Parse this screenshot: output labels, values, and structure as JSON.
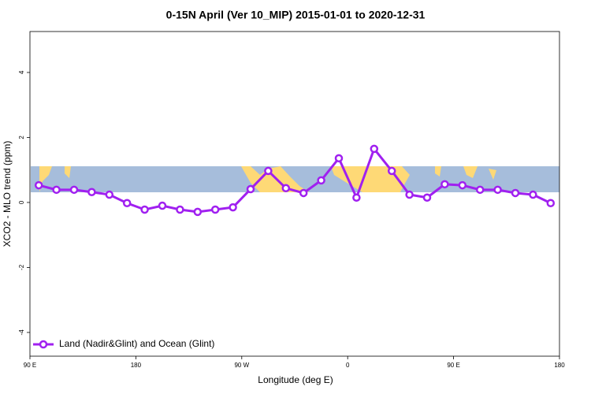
{
  "chart_data": {
    "type": "line",
    "title": "0-15N April (Ver 10_MIP)   2015-01-01 to 2020-12-31",
    "x_label": "Longitude (deg E)",
    "y_label": "XCO2 - MLO trend (ppm)",
    "x": [
      97.5,
      112.5,
      127.5,
      142.5,
      157.5,
      172.5,
      187.5,
      202.5,
      217.5,
      232.5,
      247.5,
      262.5,
      277.5,
      292.5,
      307.5,
      322.5,
      337.5,
      352.5,
      367.5,
      382.5,
      397.5,
      412.5,
      427.5,
      442.5,
      457.5,
      472.5,
      487.5,
      502.5,
      517.5,
      532.5
    ],
    "series": [
      {
        "name": "Land (Nadir&Glint) and Ocean (Glint)",
        "color": "#a020f0",
        "values": [
          0.53,
          0.39,
          0.39,
          0.32,
          0.24,
          -0.02,
          -0.22,
          -0.1,
          -0.22,
          -0.29,
          -0.22,
          -0.15,
          0.41,
          0.97,
          0.44,
          0.29,
          0.68,
          1.36,
          0.15,
          1.65,
          0.97,
          0.24,
          0.15,
          0.56,
          0.53,
          0.39,
          0.39,
          0.29,
          0.24,
          -0.02
        ]
      }
    ],
    "xlim": [
      90,
      540
    ],
    "xticks": [
      {
        "value": 90,
        "label": "90 E"
      },
      {
        "value": 180,
        "label": "180"
      },
      {
        "value": 270,
        "label": "90 W"
      },
      {
        "value": 360,
        "label": "0"
      },
      {
        "value": 450,
        "label": "90 E"
      },
      {
        "value": 540,
        "label": "180"
      }
    ],
    "ylim": [
      -4.73,
      5.26
    ],
    "yticks": [
      -4,
      -2,
      0,
      2,
      4
    ],
    "legend": "bottom-left"
  }
}
